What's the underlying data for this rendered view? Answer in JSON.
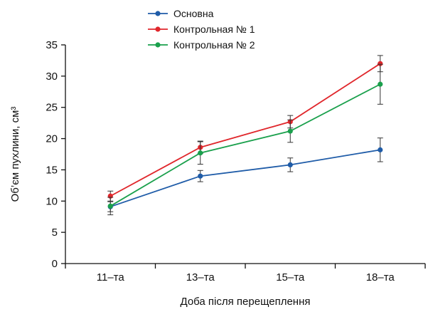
{
  "chart_data": {
    "type": "line",
    "title": "",
    "xlabel": "Доба після перещеплення",
    "ylabel": "Об’єм пухлини, см³",
    "categories": [
      "11–та",
      "13–та",
      "15–та",
      "18–та"
    ],
    "ylim": [
      0,
      35
    ],
    "yticks": [
      0,
      5,
      10,
      15,
      20,
      25,
      30,
      35
    ],
    "grid": false,
    "legend_position": "top-center",
    "error_bars": true,
    "series": [
      {
        "name": "Основна",
        "color": "#1f5ca8",
        "values": [
          9.1,
          14.0,
          15.8,
          18.2
        ],
        "errors": [
          0.8,
          0.9,
          1.1,
          1.9
        ]
      },
      {
        "name": "Контрольная № 1",
        "color": "#e0262b",
        "values": [
          10.8,
          18.6,
          22.7,
          32.0
        ],
        "errors": [
          0.8,
          1.0,
          1.0,
          1.3
        ]
      },
      {
        "name": "Контрольная № 2",
        "color": "#1aa04c",
        "values": [
          9.2,
          17.7,
          21.2,
          28.7
        ],
        "errors": [
          1.4,
          1.8,
          1.8,
          3.2
        ]
      }
    ]
  }
}
